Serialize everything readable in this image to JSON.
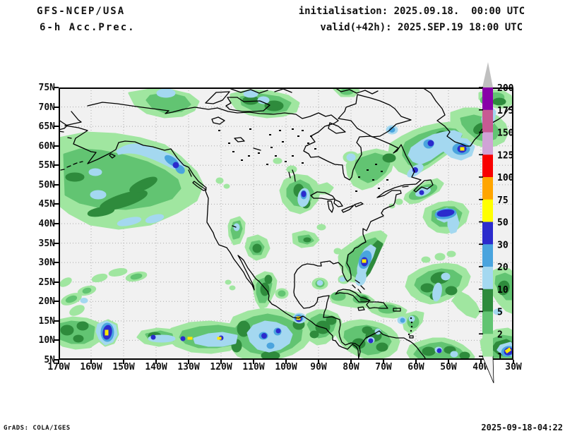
{
  "header": {
    "model": "GFS-NCEP/USA",
    "product": "6-h Acc.Prec.",
    "init_line": "initialisation: 2025.09.18.  00:00 UTC",
    "valid_line": "valid(+42h): 2025.SEP.19 18:00 UTC"
  },
  "map": {
    "lat_labels": [
      "75N",
      "70N",
      "65N",
      "60N",
      "55N",
      "50N",
      "45N",
      "40N",
      "35N",
      "30N",
      "25N",
      "20N",
      "15N",
      "10N",
      "5N"
    ],
    "lon_labels": [
      "170W",
      "160W",
      "150W",
      "140W",
      "130W",
      "120W",
      "110W",
      "100W",
      "90W",
      "80W",
      "70W",
      "60W",
      "50W",
      "40W",
      "30W"
    ],
    "background": "#f1f1f1",
    "gridline_color": "#aaaaaa",
    "coastline_color": "#000000"
  },
  "colorbar": {
    "levels_top_to_bottom": [
      "200",
      "175",
      "150",
      "125",
      "100",
      "75",
      "50",
      "30",
      "20",
      "10",
      "5",
      "2",
      "1"
    ],
    "segment_colors_top_to_bottom": [
      "#8800a8",
      "#c75a93",
      "#d0a3d6",
      "#f80000",
      "#ffa500",
      "#ffff00",
      "#2b2bcd",
      "#4aa4de",
      "#a4d8f0",
      "#2e8b3c",
      "#62c472",
      "#a0e6a0"
    ],
    "above_max_arrow_color": "#c0c0c0",
    "below_min_arrow_color": "#f2f2f2"
  },
  "palette": {
    "c1": "#a0e6a0",
    "c2": "#62c472",
    "c3": "#2e8b3c",
    "c4": "#a4d8f0",
    "c5": "#4aa4de",
    "c6": "#2b2bcd",
    "c7": "#ffe800"
  },
  "footer": {
    "left": "GrADS: COLA/IGES",
    "right": "2025-09-18-04:22"
  }
}
